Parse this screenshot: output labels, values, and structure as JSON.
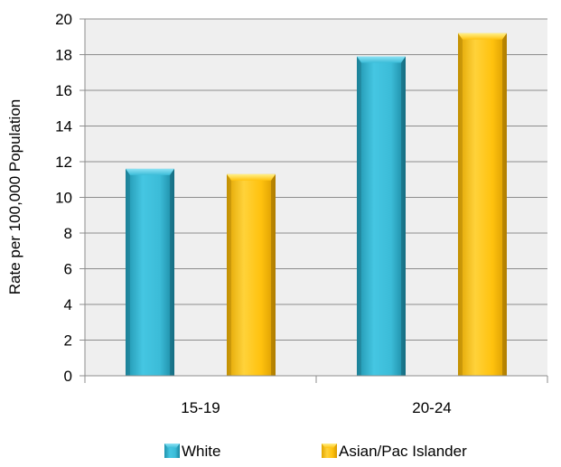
{
  "chart_data": {
    "type": "bar",
    "title": "",
    "xlabel": "",
    "ylabel": "Rate per 100,000 Population",
    "categories": [
      "15-19",
      "20-24"
    ],
    "series": [
      {
        "name": "White",
        "values": [
          11.6,
          17.9
        ],
        "color": "#3bbcd8"
      },
      {
        "name": "Asian/Pac Islander",
        "values": [
          11.3,
          19.2
        ],
        "color": "#ffc20e"
      }
    ],
    "ylim": [
      0,
      20
    ],
    "yticks": [
      "0",
      "2",
      "4",
      "6",
      "8",
      "10",
      "12",
      "14",
      "16",
      "18",
      "20"
    ],
    "grid": true,
    "plot_background": "#efefef",
    "legend_position": "bottom"
  }
}
